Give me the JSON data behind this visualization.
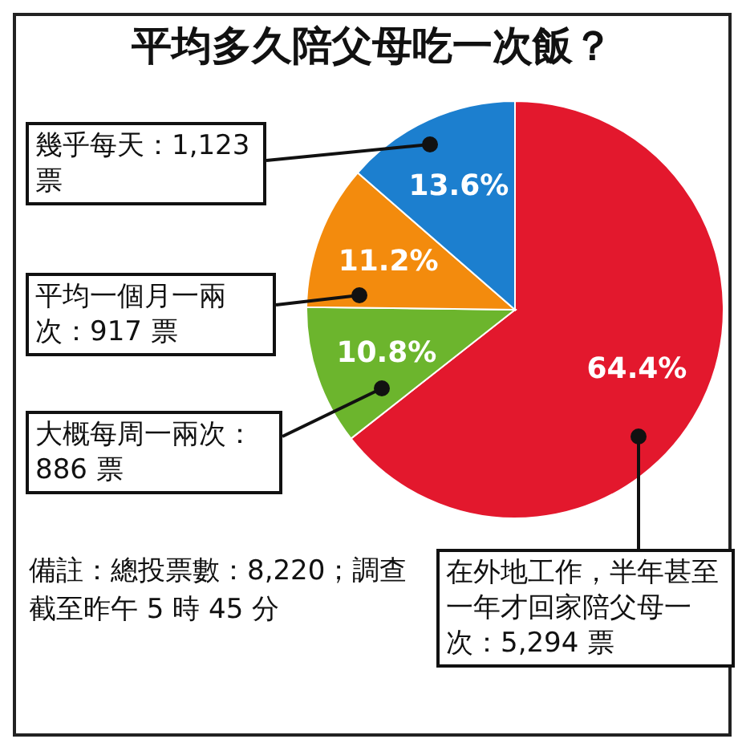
{
  "chart_data": {
    "type": "pie",
    "title": "平均多久陪父母吃一次飯？",
    "categories": [
      "在外地工作，半年甚至一年才回家陪父母一次：5,294 票",
      "大概每周一兩次：886 票",
      "平均一個月一兩次：917 票",
      "幾乎每天：1,123 票"
    ],
    "values": [
      64.4,
      10.8,
      11.2,
      13.6
    ],
    "value_labels": [
      "64.4%",
      "10.8%",
      "11.2%",
      "13.6%"
    ],
    "colors": [
      "#e3182d",
      "#6cb52d",
      "#f38b0d",
      "#1c7fcf"
    ],
    "annotations": [
      "備註：總投票數：8,220；調查截至昨午 5 時 45 分"
    ]
  }
}
